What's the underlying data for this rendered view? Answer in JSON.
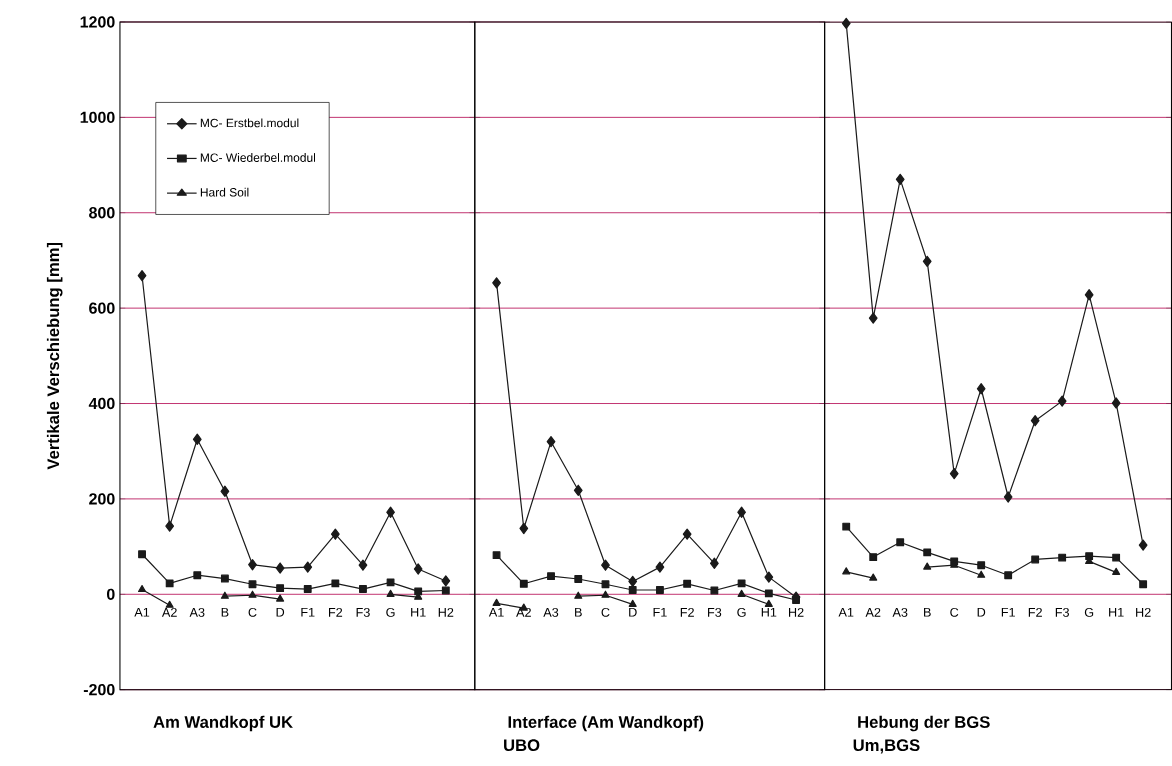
{
  "chart_data": [
    {
      "type": "line",
      "xlabel": "Am Wandkopf UK",
      "ylabel": "Vertikale Verschiebung  [mm]",
      "categories": [
        "A1",
        "A2",
        "A3",
        "B",
        "C",
        "D",
        "F1",
        "F2",
        "F3",
        "G",
        "H1",
        "H2"
      ],
      "ylim": [
        -200,
        1200
      ],
      "yticks": [
        -200,
        0,
        200,
        400,
        600,
        800,
        1000,
        1200
      ],
      "grid": "y",
      "legend": "top left",
      "series": [
        {
          "name": "MC- Erstbel.modul",
          "color": "#1a1a1a",
          "marker": "diamond",
          "values": [
            668,
            143,
            325,
            216,
            62,
            55,
            57,
            126,
            61,
            172,
            53,
            28
          ]
        },
        {
          "name": "MC- Wiederbel.modul",
          "color": "#1a1a1a",
          "marker": "square",
          "values": [
            84,
            23,
            40,
            33,
            21,
            13,
            11,
            23,
            11,
            25,
            6,
            8
          ]
        },
        {
          "name": "Hard Soil",
          "color": "#1a1a1a",
          "marker": "triangle",
          "values": [
            10,
            -23,
            null,
            -4,
            -2,
            -10,
            null,
            null,
            null,
            0,
            -6,
            null
          ]
        }
      ]
    },
    {
      "type": "line",
      "xlabel": "Interface (Am Wandkopf)",
      "annotations": [
        "UBO"
      ],
      "categories": [
        "A1",
        "A2",
        "A3",
        "B",
        "C",
        "D",
        "F1",
        "F2",
        "F3",
        "G",
        "H1",
        "H2"
      ],
      "ylim": [
        -200,
        1200
      ],
      "yticks": [
        -200,
        0,
        200,
        400,
        600,
        800,
        1000,
        1200
      ],
      "grid": "y",
      "tick_labels": "x",
      "series": [
        {
          "color": "#1a1a1a",
          "marker": "diamond",
          "values": [
            653,
            138,
            320,
            218,
            61,
            27,
            57,
            126,
            65,
            172,
            36,
            -6
          ]
        },
        {
          "color": "#1a1a1a",
          "marker": "square",
          "values": [
            82,
            22,
            38,
            32,
            21,
            9,
            9,
            22,
            8,
            23,
            2,
            -12
          ]
        },
        {
          "color": "#1a1a1a",
          "marker": "triangle",
          "values": [
            -19,
            -29,
            null,
            -4,
            -2,
            -21,
            null,
            null,
            null,
            0,
            -21,
            null
          ]
        }
      ]
    },
    {
      "type": "line",
      "xlabel": "Hebung der BGS",
      "annotations": [
        "Um,BGS"
      ],
      "categories": [
        "A1",
        "A2",
        "A3",
        "B",
        "C",
        "D",
        "F1",
        "F2",
        "F3",
        "G",
        "H1",
        "H2"
      ],
      "ylim": [
        -200,
        1200
      ],
      "yticks": [
        -200,
        0,
        200,
        400,
        600,
        800,
        1000,
        1200
      ],
      "grid": "y",
      "tick_labels": "x",
      "series": [
        {
          "color": "#1a1a1a",
          "marker": "diamond",
          "values": [
            1197,
            579,
            870,
            698,
            253,
            431,
            204,
            364,
            405,
            628,
            401,
            103
          ]
        },
        {
          "color": "#1a1a1a",
          "marker": "square",
          "values": [
            142,
            78,
            109,
            88,
            69,
            61,
            40,
            73,
            77,
            80,
            77,
            21
          ]
        },
        {
          "color": "#1a1a1a",
          "marker": "triangle",
          "values": [
            47,
            34,
            null,
            57,
            61,
            40,
            null,
            null,
            null,
            69,
            46,
            null
          ]
        }
      ]
    }
  ]
}
